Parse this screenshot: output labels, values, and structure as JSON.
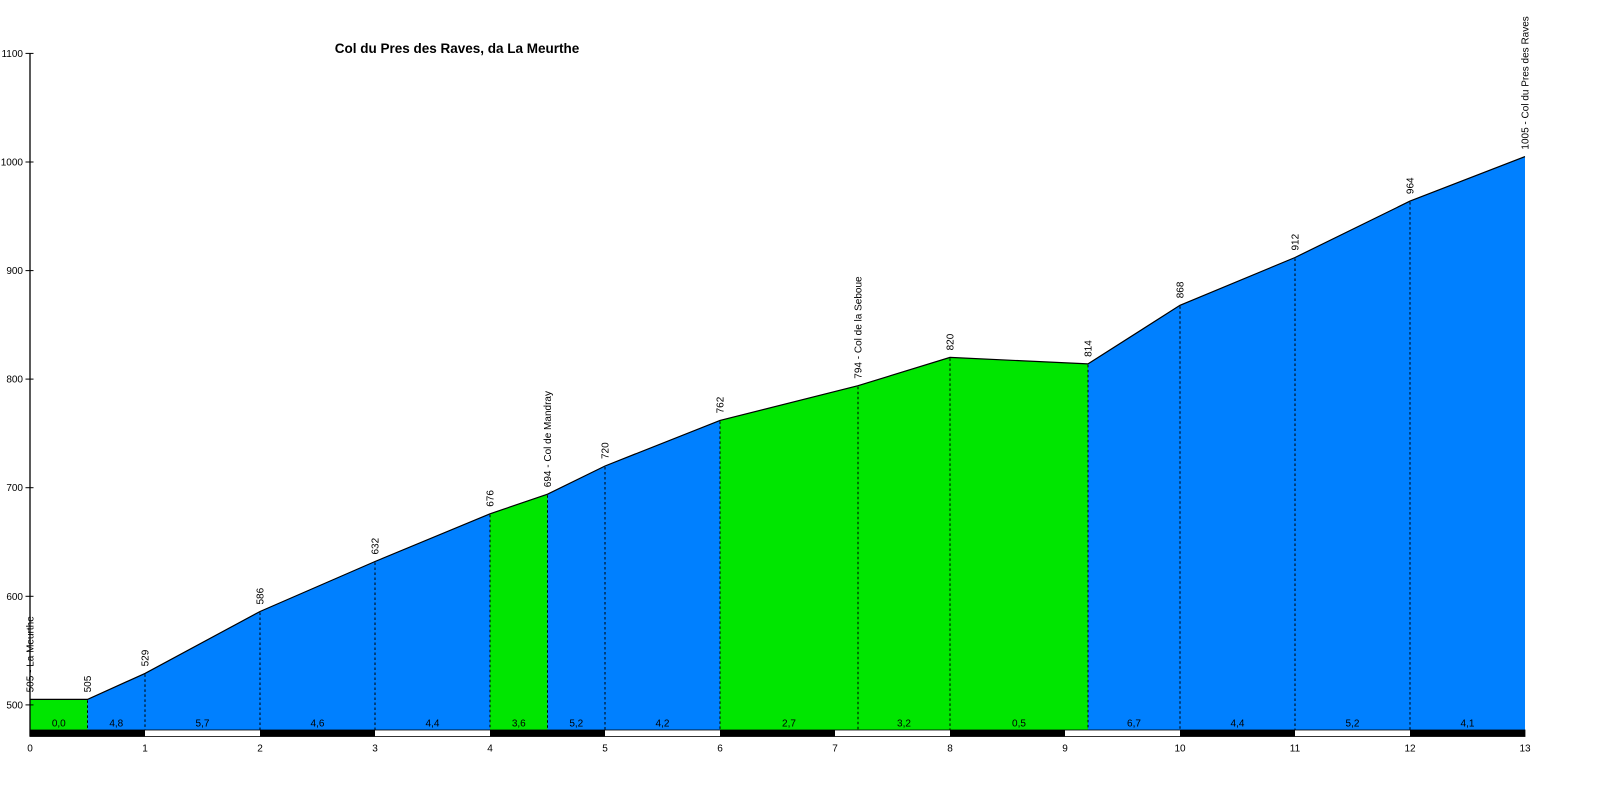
{
  "page": {
    "background": "#ffffff"
  },
  "chart_data": {
    "type": "area",
    "title": "Col du Pres des Raves, da La Meurthe",
    "xlabel": "",
    "ylabel": "",
    "x_unit": "km",
    "y_unit": "m",
    "xlim": [
      0,
      13
    ],
    "ylim": [
      500,
      1100
    ],
    "x_ticks": [
      0,
      1,
      2,
      3,
      4,
      5,
      6,
      7,
      8,
      9,
      10,
      11,
      12,
      13
    ],
    "y_ticks": [
      500,
      600,
      700,
      800,
      900,
      1000,
      1100
    ],
    "grid": "dashed vertical lines at each profile point",
    "legend_position": "none",
    "colors": {
      "gentle_fill": "#00e600",
      "steep_fill": "#0080ff",
      "outline": "#000000",
      "gradient_text": "#001933",
      "bar_black": "#000000",
      "bar_white": "#ffffff"
    },
    "points": [
      {
        "km": 0,
        "elev": 505,
        "label": "505 - La Meurthe"
      },
      {
        "km": 0.5,
        "elev": 505,
        "label": "505"
      },
      {
        "km": 1,
        "elev": 529,
        "label": "529"
      },
      {
        "km": 2,
        "elev": 586,
        "label": "586"
      },
      {
        "km": 3,
        "elev": 632,
        "label": "632"
      },
      {
        "km": 4,
        "elev": 676,
        "label": "676"
      },
      {
        "km": 4.5,
        "elev": 694,
        "label": "694 - Col de Mandray"
      },
      {
        "km": 5,
        "elev": 720,
        "label": "720"
      },
      {
        "km": 6,
        "elev": 762,
        "label": "762"
      },
      {
        "km": 7.2,
        "elev": 794,
        "label": "794 - Col de la Seboue"
      },
      {
        "km": 8,
        "elev": 820,
        "label": "820"
      },
      {
        "km": 9.2,
        "elev": 814,
        "label": "814"
      },
      {
        "km": 10,
        "elev": 868,
        "label": "868"
      },
      {
        "km": 11,
        "elev": 912,
        "label": "912"
      },
      {
        "km": 12,
        "elev": 964,
        "label": "964"
      },
      {
        "km": 13,
        "elev": 1005,
        "label": "1005 - Col du Pres des Raves"
      }
    ],
    "segments": [
      {
        "from_km": 0,
        "to_km": 0.5,
        "gradient": "0,0",
        "steepness": "gentle"
      },
      {
        "from_km": 0.5,
        "to_km": 1,
        "gradient": "4,8",
        "steepness": "steep"
      },
      {
        "from_km": 1,
        "to_km": 2,
        "gradient": "5,7",
        "steepness": "steep"
      },
      {
        "from_km": 2,
        "to_km": 3,
        "gradient": "4,6",
        "steepness": "steep"
      },
      {
        "from_km": 3,
        "to_km": 4,
        "gradient": "4,4",
        "steepness": "steep"
      },
      {
        "from_km": 4,
        "to_km": 4.5,
        "gradient": "3,6",
        "steepness": "gentle"
      },
      {
        "from_km": 4.5,
        "to_km": 5,
        "gradient": "5,2",
        "steepness": "steep"
      },
      {
        "from_km": 5,
        "to_km": 6,
        "gradient": "4,2",
        "steepness": "steep"
      },
      {
        "from_km": 6,
        "to_km": 7.2,
        "gradient": "2,7",
        "steepness": "gentle"
      },
      {
        "from_km": 7.2,
        "to_km": 8,
        "gradient": "3,2",
        "steepness": "gentle"
      },
      {
        "from_km": 8,
        "to_km": 9.2,
        "gradient": "0,5",
        "steepness": "gentle"
      },
      {
        "from_km": 9.2,
        "to_km": 10,
        "gradient": "6,7",
        "steepness": "steep"
      },
      {
        "from_km": 10,
        "to_km": 11,
        "gradient": "4,4",
        "steepness": "steep"
      },
      {
        "from_km": 11,
        "to_km": 12,
        "gradient": "5,2",
        "steepness": "steep"
      },
      {
        "from_km": 12,
        "to_km": 13,
        "gradient": "4,1",
        "steepness": "steep"
      }
    ],
    "km_scale_bar": {
      "description": "alternating km bands under profile",
      "first_color": "black",
      "colors": [
        "black",
        "white"
      ]
    }
  }
}
